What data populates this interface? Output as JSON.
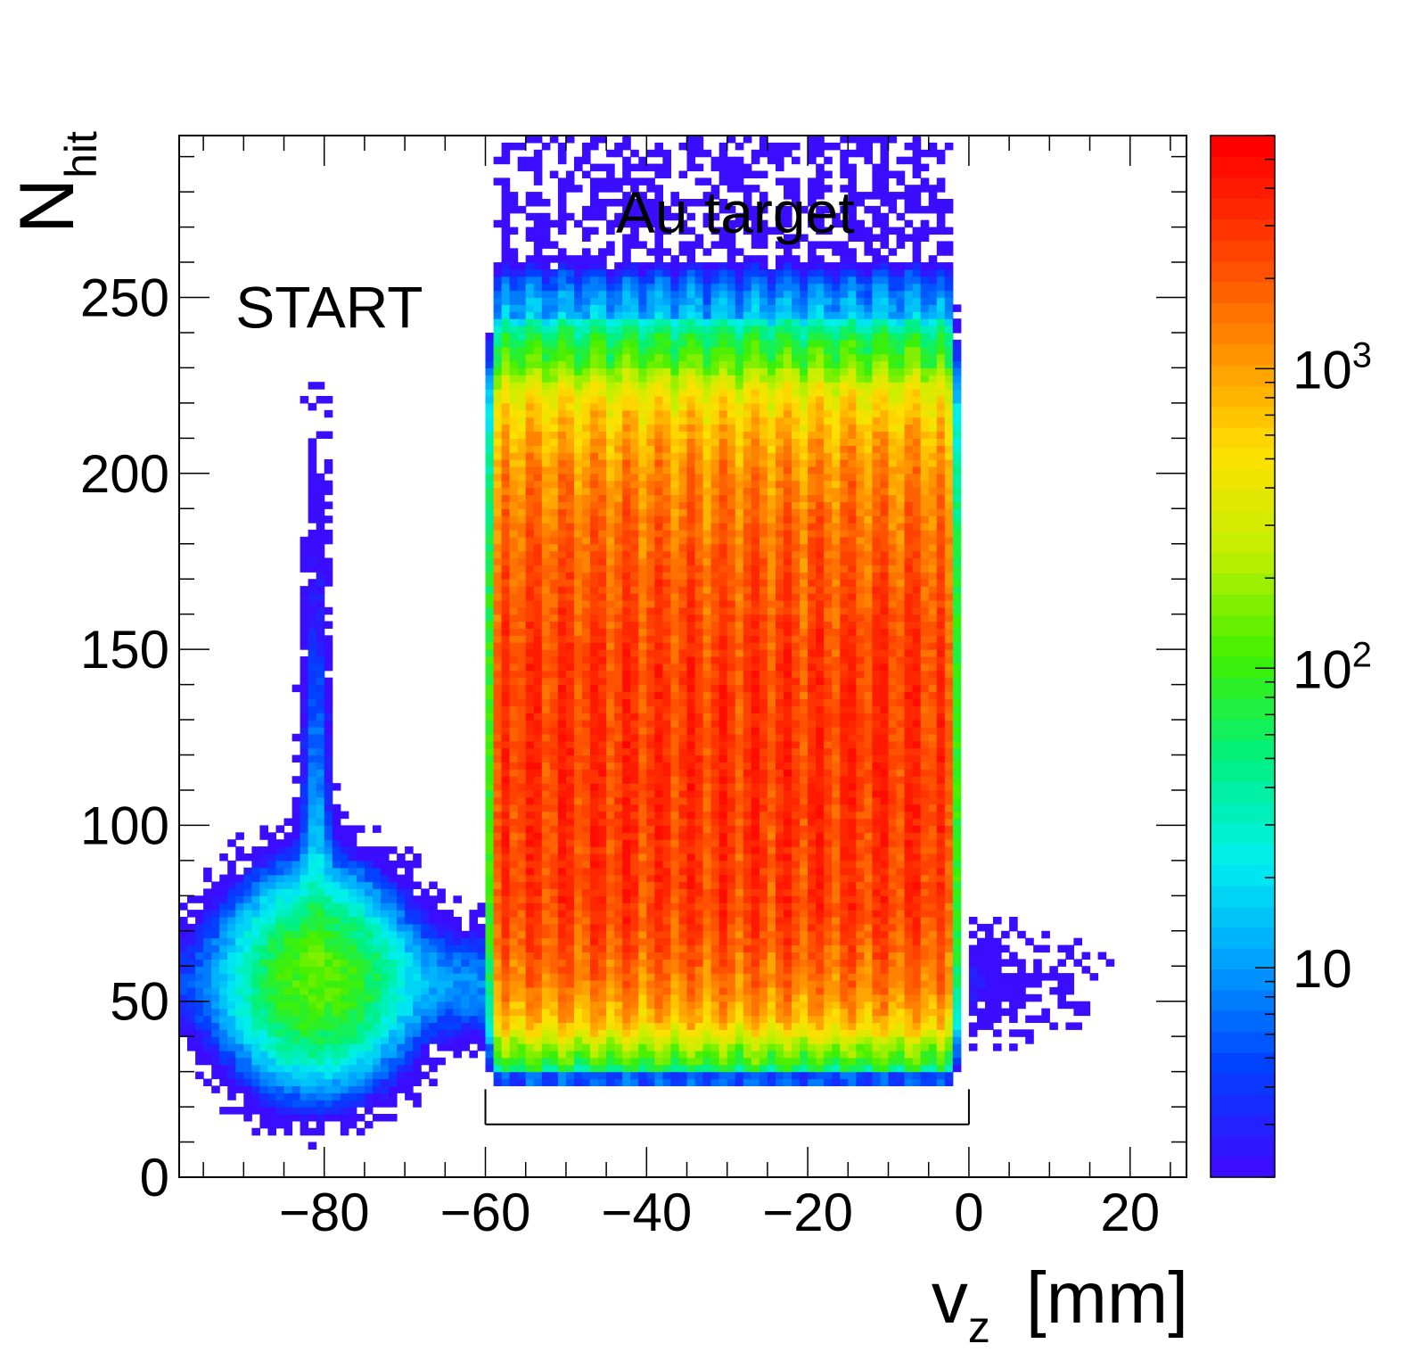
{
  "chart_data": {
    "type": "heatmap",
    "title": "",
    "xlabel": "v",
    "xlabel_sub": "z",
    "xlabel_unit": "[mm]",
    "ylabel": "N",
    "ylabel_sub": "hit",
    "xlim": [
      -98,
      27
    ],
    "ylim": [
      0,
      296
    ],
    "x_ticks": [
      -80,
      -60,
      -40,
      -20,
      0,
      20
    ],
    "x_tick_labels": [
      "−80",
      "−60",
      "−40",
      "−20",
      "0",
      "20"
    ],
    "y_ticks": [
      0,
      50,
      100,
      150,
      200,
      250
    ],
    "y_tick_labels": [
      "0",
      "50",
      "100",
      "150",
      "200",
      "250"
    ],
    "z_scale": "log",
    "zlim": [
      2,
      6000
    ],
    "z_ticks": [
      10,
      100,
      1000
    ],
    "z_tick_labels": [
      {
        "base": "10",
        "exp": ""
      },
      {
        "base": "10",
        "exp": "2"
      },
      {
        "base": "10",
        "exp": "3"
      }
    ],
    "annotations": [
      {
        "text": "START",
        "x": -91,
        "y": 248
      },
      {
        "text": "Au target",
        "x": -29,
        "y": 275
      }
    ],
    "bracket": {
      "x_start": -60,
      "x_end": 0,
      "y": 15
    },
    "features": {
      "start_peak": {
        "x_center": -81,
        "y_center": 56,
        "tail_top": 230
      },
      "target_foils": {
        "count": 15,
        "x_start": -58,
        "x_end": -3,
        "n_hit_range": [
          27,
          262
        ]
      }
    },
    "colors": {
      "palette": [
        "#3b0dff",
        "#0040ff",
        "#00a0ff",
        "#00f0f0",
        "#00f080",
        "#40f000",
        "#c0f000",
        "#ffe000",
        "#ff9000",
        "#ff4000",
        "#ff0000"
      ]
    }
  }
}
